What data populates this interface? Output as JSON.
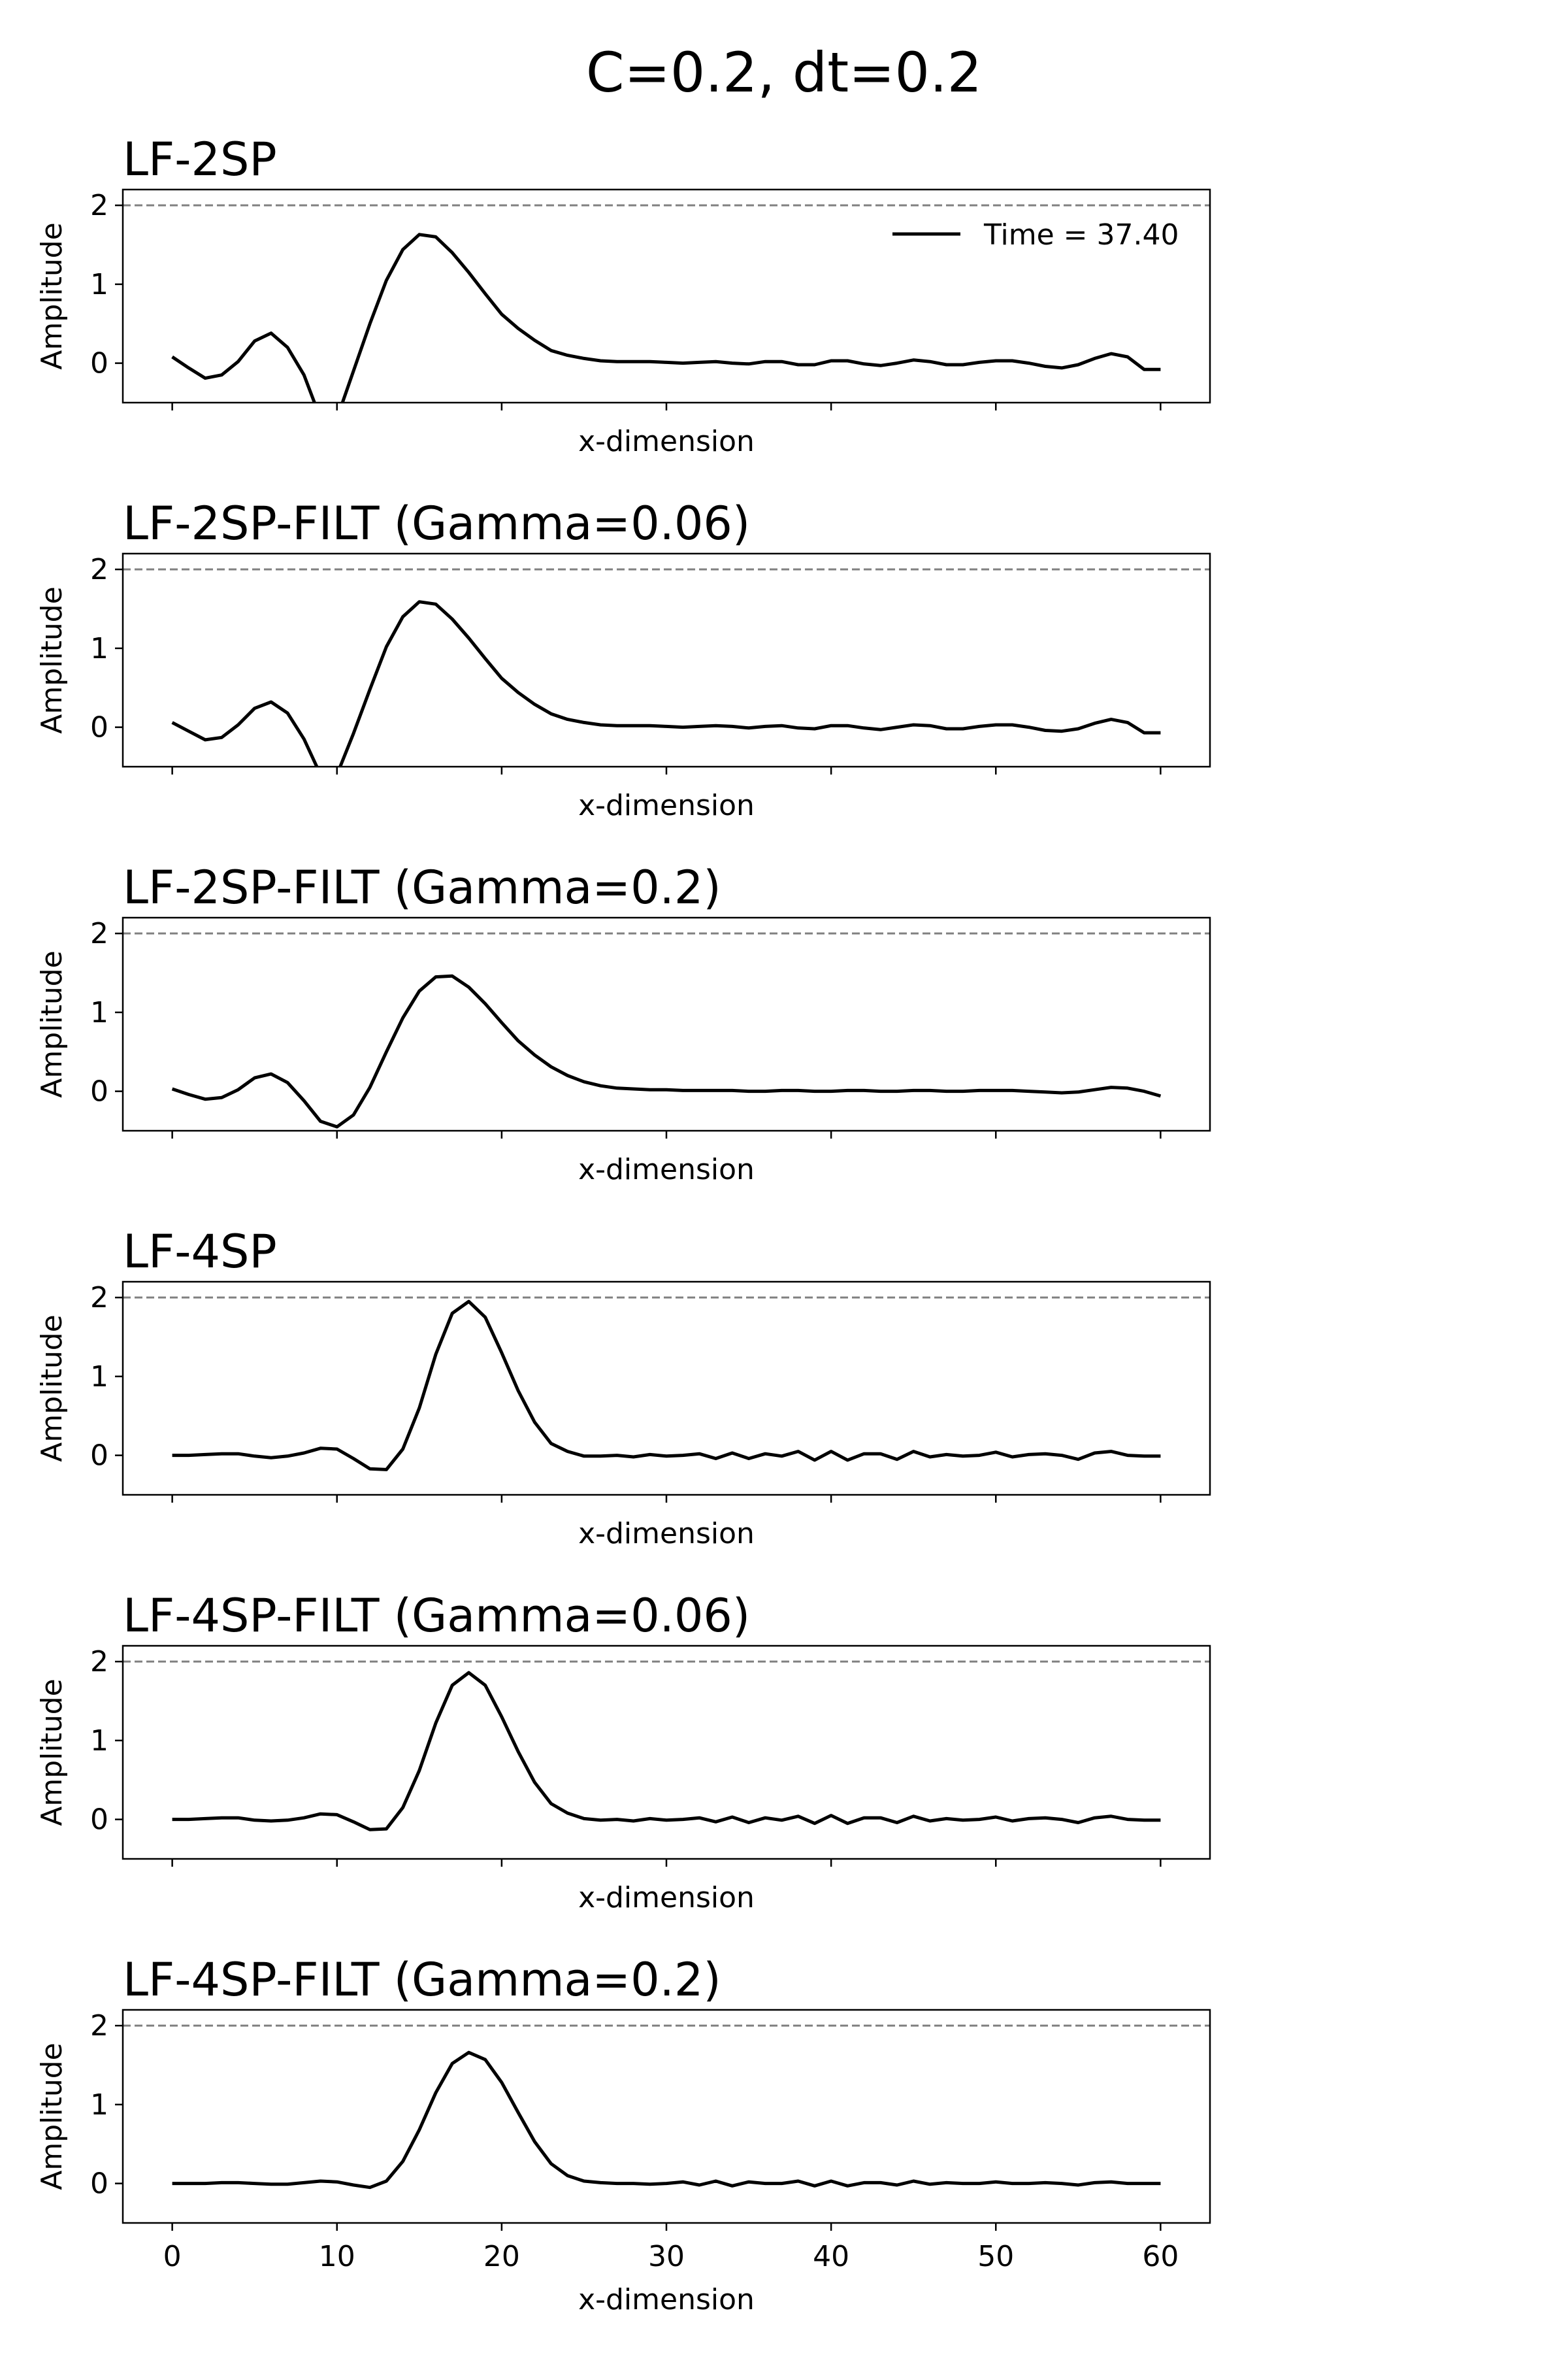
{
  "figure": {
    "title": "C=0.2, dt=0.2"
  },
  "chart_data": [
    {
      "type": "line",
      "title": "LF-2SP",
      "xlabel": "x-dimension",
      "ylabel": "Amplitude",
      "xlim": [
        -3,
        63
      ],
      "ylim": [
        -0.5,
        2.2
      ],
      "yticks": [
        0,
        1,
        2
      ],
      "xticks": [
        0,
        10,
        20,
        30,
        40,
        50,
        60
      ],
      "xticklabels_visible": false,
      "reference_line": {
        "y": 2,
        "style": "dashed",
        "color": "#808080"
      },
      "legend": {
        "label": "Time = 37.40",
        "position": "top-right"
      },
      "series": [
        {
          "color": "#000000",
          "x": [
            0,
            1,
            2,
            3,
            4,
            5,
            6,
            7,
            8,
            9,
            10,
            11,
            12,
            13,
            14,
            15,
            16,
            17,
            18,
            19,
            20,
            21,
            22,
            23,
            24,
            25,
            26,
            27,
            28,
            29,
            30,
            31,
            32,
            33,
            34,
            35,
            36,
            37,
            38,
            39,
            40,
            41,
            42,
            43,
            44,
            45,
            46,
            47,
            48,
            49,
            50,
            51,
            52,
            53,
            54,
            55,
            56,
            57,
            58,
            59,
            60
          ],
          "y": [
            0.08,
            -0.06,
            -0.19,
            -0.15,
            0.02,
            0.28,
            0.38,
            0.2,
            -0.15,
            -0.7,
            -0.7,
            -0.1,
            0.5,
            1.05,
            1.44,
            1.63,
            1.6,
            1.4,
            1.15,
            0.88,
            0.62,
            0.44,
            0.29,
            0.16,
            0.1,
            0.06,
            0.03,
            0.02,
            0.02,
            0.02,
            0.01,
            0.0,
            0.01,
            0.02,
            0.0,
            -0.01,
            0.02,
            0.02,
            -0.02,
            -0.02,
            0.03,
            0.03,
            -0.01,
            -0.03,
            0.0,
            0.04,
            0.02,
            -0.02,
            -0.02,
            0.01,
            0.03,
            0.03,
            0.0,
            -0.04,
            -0.06,
            -0.02,
            0.06,
            0.12,
            0.08,
            -0.08,
            -0.08
          ]
        }
      ]
    },
    {
      "type": "line",
      "title": "LF-2SP-FILT (Gamma=0.06)",
      "xlabel": "x-dimension",
      "ylabel": "Amplitude",
      "xlim": [
        -3,
        63
      ],
      "ylim": [
        -0.5,
        2.2
      ],
      "yticks": [
        0,
        1,
        2
      ],
      "xticks": [
        0,
        10,
        20,
        30,
        40,
        50,
        60
      ],
      "xticklabels_visible": false,
      "reference_line": {
        "y": 2,
        "style": "dashed",
        "color": "#808080"
      },
      "series": [
        {
          "color": "#000000",
          "x": [
            0,
            1,
            2,
            3,
            4,
            5,
            6,
            7,
            8,
            9,
            10,
            11,
            12,
            13,
            14,
            15,
            16,
            17,
            18,
            19,
            20,
            21,
            22,
            23,
            24,
            25,
            26,
            27,
            28,
            29,
            30,
            31,
            32,
            33,
            34,
            35,
            36,
            37,
            38,
            39,
            40,
            41,
            42,
            43,
            44,
            45,
            46,
            47,
            48,
            49,
            50,
            51,
            52,
            53,
            54,
            55,
            56,
            57,
            58,
            59,
            60
          ],
          "y": [
            0.06,
            -0.05,
            -0.16,
            -0.13,
            0.03,
            0.24,
            0.32,
            0.18,
            -0.15,
            -0.6,
            -0.6,
            -0.08,
            0.48,
            1.02,
            1.4,
            1.59,
            1.56,
            1.37,
            1.13,
            0.87,
            0.62,
            0.44,
            0.29,
            0.17,
            0.1,
            0.06,
            0.03,
            0.02,
            0.02,
            0.02,
            0.01,
            0.0,
            0.01,
            0.02,
            0.01,
            -0.01,
            0.01,
            0.02,
            -0.01,
            -0.02,
            0.02,
            0.02,
            -0.01,
            -0.03,
            0.0,
            0.03,
            0.02,
            -0.02,
            -0.02,
            0.01,
            0.03,
            0.03,
            0.0,
            -0.04,
            -0.05,
            -0.02,
            0.05,
            0.1,
            0.06,
            -0.07,
            -0.07
          ]
        }
      ]
    },
    {
      "type": "line",
      "title": "LF-2SP-FILT (Gamma=0.2)",
      "xlabel": "x-dimension",
      "ylabel": "Amplitude",
      "xlim": [
        -3,
        63
      ],
      "ylim": [
        -0.5,
        2.2
      ],
      "yticks": [
        0,
        1,
        2
      ],
      "xticks": [
        0,
        10,
        20,
        30,
        40,
        50,
        60
      ],
      "xticklabels_visible": false,
      "reference_line": {
        "y": 2,
        "style": "dashed",
        "color": "#808080"
      },
      "series": [
        {
          "color": "#000000",
          "x": [
            0,
            1,
            2,
            3,
            4,
            5,
            6,
            7,
            8,
            9,
            10,
            11,
            12,
            13,
            14,
            15,
            16,
            17,
            18,
            19,
            20,
            21,
            22,
            23,
            24,
            25,
            26,
            27,
            28,
            29,
            30,
            31,
            32,
            33,
            34,
            35,
            36,
            37,
            38,
            39,
            40,
            41,
            42,
            43,
            44,
            45,
            46,
            47,
            48,
            49,
            50,
            51,
            52,
            53,
            54,
            55,
            56,
            57,
            58,
            59,
            60
          ],
          "y": [
            0.03,
            -0.04,
            -0.1,
            -0.08,
            0.02,
            0.17,
            0.22,
            0.11,
            -0.12,
            -0.38,
            -0.45,
            -0.3,
            0.05,
            0.5,
            0.93,
            1.27,
            1.45,
            1.46,
            1.32,
            1.11,
            0.87,
            0.64,
            0.46,
            0.31,
            0.2,
            0.12,
            0.07,
            0.04,
            0.03,
            0.02,
            0.02,
            0.01,
            0.01,
            0.01,
            0.01,
            0.0,
            0.0,
            0.01,
            0.01,
            0.0,
            0.0,
            0.01,
            0.01,
            0.0,
            0.0,
            0.01,
            0.01,
            0.0,
            0.0,
            0.01,
            0.01,
            0.01,
            0.0,
            -0.01,
            -0.02,
            -0.01,
            0.02,
            0.05,
            0.04,
            0.0,
            -0.06
          ]
        }
      ]
    },
    {
      "type": "line",
      "title": "LF-4SP",
      "xlabel": "x-dimension",
      "ylabel": "Amplitude",
      "xlim": [
        -3,
        63
      ],
      "ylim": [
        -0.5,
        2.2
      ],
      "yticks": [
        0,
        1,
        2
      ],
      "xticks": [
        0,
        10,
        20,
        30,
        40,
        50,
        60
      ],
      "xticklabels_visible": false,
      "reference_line": {
        "y": 2,
        "style": "dashed",
        "color": "#808080"
      },
      "series": [
        {
          "color": "#000000",
          "x": [
            0,
            1,
            2,
            3,
            4,
            5,
            6,
            7,
            8,
            9,
            10,
            11,
            12,
            13,
            14,
            15,
            16,
            17,
            18,
            19,
            20,
            21,
            22,
            23,
            24,
            25,
            26,
            27,
            28,
            29,
            30,
            31,
            32,
            33,
            34,
            35,
            36,
            37,
            38,
            39,
            40,
            41,
            42,
            43,
            44,
            45,
            46,
            47,
            48,
            49,
            50,
            51,
            52,
            53,
            54,
            55,
            56,
            57,
            58,
            59,
            60
          ],
          "y": [
            0.0,
            0.0,
            0.01,
            0.02,
            0.02,
            -0.01,
            -0.03,
            -0.01,
            0.03,
            0.09,
            0.08,
            -0.04,
            -0.17,
            -0.18,
            0.08,
            0.6,
            1.28,
            1.8,
            1.95,
            1.75,
            1.3,
            0.82,
            0.42,
            0.15,
            0.05,
            -0.01,
            -0.01,
            0.0,
            -0.02,
            0.01,
            -0.01,
            0.0,
            0.02,
            -0.04,
            0.03,
            -0.04,
            0.02,
            -0.01,
            0.05,
            -0.06,
            0.05,
            -0.06,
            0.02,
            0.02,
            -0.05,
            0.05,
            -0.02,
            0.01,
            -0.01,
            0.0,
            0.04,
            -0.02,
            0.01,
            0.02,
            0.0,
            -0.05,
            0.03,
            0.05,
            0.0,
            -0.01,
            -0.01
          ]
        }
      ]
    },
    {
      "type": "line",
      "title": "LF-4SP-FILT (Gamma=0.06)",
      "xlabel": "x-dimension",
      "ylabel": "Amplitude",
      "xlim": [
        -3,
        63
      ],
      "ylim": [
        -0.5,
        2.2
      ],
      "yticks": [
        0,
        1,
        2
      ],
      "xticks": [
        0,
        10,
        20,
        30,
        40,
        50,
        60
      ],
      "xticklabels_visible": false,
      "reference_line": {
        "y": 2,
        "style": "dashed",
        "color": "#808080"
      },
      "series": [
        {
          "color": "#000000",
          "x": [
            0,
            1,
            2,
            3,
            4,
            5,
            6,
            7,
            8,
            9,
            10,
            11,
            12,
            13,
            14,
            15,
            16,
            17,
            18,
            19,
            20,
            21,
            22,
            23,
            24,
            25,
            26,
            27,
            28,
            29,
            30,
            31,
            32,
            33,
            34,
            35,
            36,
            37,
            38,
            39,
            40,
            41,
            42,
            43,
            44,
            45,
            46,
            47,
            48,
            49,
            50,
            51,
            52,
            53,
            54,
            55,
            56,
            57,
            58,
            59,
            60
          ],
          "y": [
            0.0,
            0.0,
            0.01,
            0.02,
            0.02,
            -0.01,
            -0.02,
            -0.01,
            0.02,
            0.07,
            0.06,
            -0.03,
            -0.13,
            -0.12,
            0.15,
            0.62,
            1.22,
            1.7,
            1.86,
            1.7,
            1.3,
            0.86,
            0.47,
            0.2,
            0.08,
            0.01,
            -0.01,
            0.0,
            -0.02,
            0.01,
            -0.01,
            0.0,
            0.02,
            -0.03,
            0.03,
            -0.04,
            0.02,
            -0.01,
            0.04,
            -0.05,
            0.05,
            -0.05,
            0.02,
            0.02,
            -0.04,
            0.04,
            -0.02,
            0.01,
            -0.01,
            0.0,
            0.03,
            -0.02,
            0.01,
            0.02,
            0.0,
            -0.04,
            0.02,
            0.04,
            0.0,
            -0.01,
            -0.01
          ]
        }
      ]
    },
    {
      "type": "line",
      "title": "LF-4SP-FILT (Gamma=0.2)",
      "xlabel": "x-dimension",
      "ylabel": "Amplitude",
      "xlim": [
        -3,
        63
      ],
      "ylim": [
        -0.5,
        2.2
      ],
      "yticks": [
        0,
        1,
        2
      ],
      "xticks": [
        0,
        10,
        20,
        30,
        40,
        50,
        60
      ],
      "xticklabels": [
        "0",
        "10",
        "20",
        "30",
        "40",
        "50",
        "60"
      ],
      "xticklabels_visible": true,
      "reference_line": {
        "y": 2,
        "style": "dashed",
        "color": "#808080"
      },
      "series": [
        {
          "color": "#000000",
          "x": [
            0,
            1,
            2,
            3,
            4,
            5,
            6,
            7,
            8,
            9,
            10,
            11,
            12,
            13,
            14,
            15,
            16,
            17,
            18,
            19,
            20,
            21,
            22,
            23,
            24,
            25,
            26,
            27,
            28,
            29,
            30,
            31,
            32,
            33,
            34,
            35,
            36,
            37,
            38,
            39,
            40,
            41,
            42,
            43,
            44,
            45,
            46,
            47,
            48,
            49,
            50,
            51,
            52,
            53,
            54,
            55,
            56,
            57,
            58,
            59,
            60
          ],
          "y": [
            0.0,
            0.0,
            0.0,
            0.01,
            0.01,
            0.0,
            -0.01,
            -0.01,
            0.01,
            0.03,
            0.02,
            -0.02,
            -0.05,
            0.03,
            0.28,
            0.68,
            1.15,
            1.52,
            1.66,
            1.57,
            1.28,
            0.9,
            0.53,
            0.25,
            0.1,
            0.03,
            0.01,
            0.0,
            0.0,
            -0.01,
            0.0,
            0.02,
            -0.02,
            0.03,
            -0.03,
            0.02,
            0.0,
            0.0,
            0.03,
            -0.03,
            0.03,
            -0.03,
            0.01,
            0.01,
            -0.02,
            0.03,
            -0.01,
            0.01,
            0.0,
            0.0,
            0.02,
            0.0,
            0.0,
            0.01,
            0.0,
            -0.02,
            0.01,
            0.02,
            0.0,
            0.0,
            0.0
          ]
        }
      ]
    }
  ]
}
